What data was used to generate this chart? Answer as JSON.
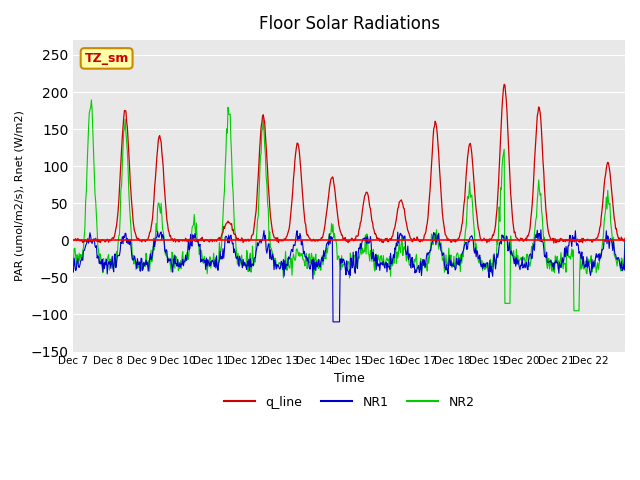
{
  "title": "Floor Solar Radiations",
  "ylabel": "PAR (umol/m2/s), Rnet (W/m2)",
  "xlabel": "Time",
  "xlim_days": 16,
  "ylim": [
    -150,
    270
  ],
  "yticks": [
    -150,
    -100,
    -50,
    0,
    50,
    100,
    150,
    200,
    250
  ],
  "xtick_positions": [
    0,
    1,
    2,
    3,
    4,
    5,
    6,
    7,
    8,
    9,
    10,
    11,
    12,
    13,
    14,
    15
  ],
  "xtick_labels": [
    "Dec 7",
    "Dec 8",
    "Dec 9",
    "Dec 10",
    "Dec 11",
    "Dec 12",
    "Dec 13",
    "Dec 14",
    "Dec 15",
    "Dec 16",
    "Dec 17",
    "Dec 18",
    "Dec 19",
    "Dec 20",
    "Dec 21",
    "Dec 22"
  ],
  "bg_color": "#e8e8e8",
  "legend_labels": [
    "q_line",
    "NR1",
    "NR2"
  ],
  "legend_colors": [
    "#cc0000",
    "#0000cc",
    "#00cc00"
  ],
  "annotation_text": "TZ_sm",
  "annotation_bg": "#ffffaa",
  "annotation_border": "#cc8800",
  "seed": 42
}
